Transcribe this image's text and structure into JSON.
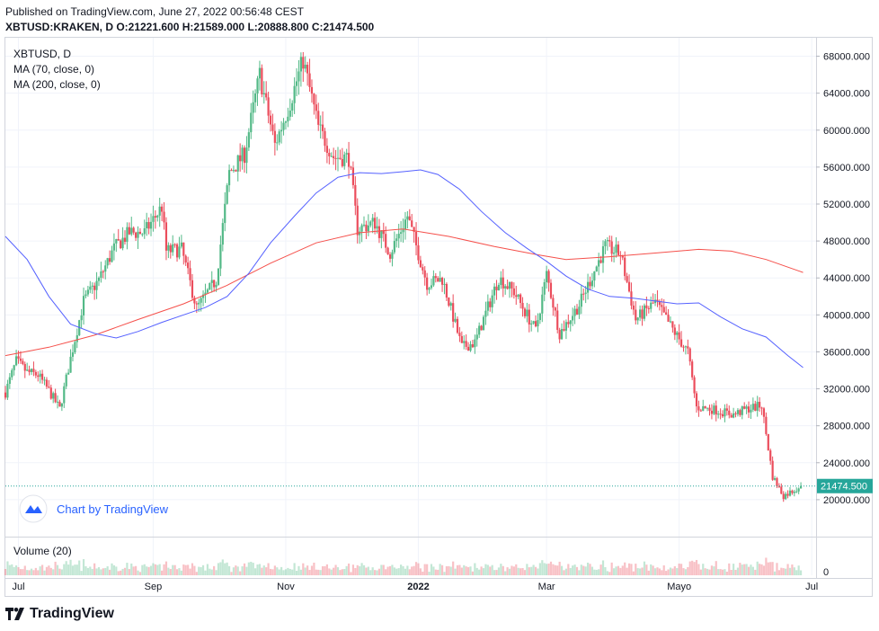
{
  "header": {
    "published": "Published on TradingView.com, June 27, 2022 00:56:48 CEST",
    "ohlc_line": "XBTUSD:KRAKEN, D O:21221.600 H:21589.000 L:20888.800 C:21474.500"
  },
  "footer_brand": "TradingView",
  "watermark": "Chart by TradingView",
  "colors": {
    "up": "#26a69a",
    "up_soft": "#53b987",
    "down": "#ef5350",
    "down_soft": "#eb4d5c",
    "ma70": "#5561ff",
    "ma200": "#f5504b",
    "grid": "#f0f3fa",
    "last_price": "#26a69a",
    "watermark": "#2962ff"
  },
  "chart_data": {
    "type": "candlestick",
    "symbol": "XBTUSD, D",
    "legend": [
      "MA (70, close, 0)",
      "MA (200, close, 0)"
    ],
    "volume_label": "Volume (20)",
    "y_ticks": [
      "68000.000",
      "64000.000",
      "60000.000",
      "56000.000",
      "52000.000",
      "48000.000",
      "44000.000",
      "40000.000",
      "36000.000",
      "32000.000",
      "28000.000",
      "24000.000",
      "20000.000"
    ],
    "y_tick_values": [
      68000,
      64000,
      60000,
      56000,
      52000,
      48000,
      44000,
      40000,
      36000,
      32000,
      28000,
      24000,
      20000
    ],
    "ylim": [
      16000,
      70000
    ],
    "x_ticks": [
      {
        "label": "Jul",
        "date": "2021-07-01"
      },
      {
        "label": "Sep",
        "date": "2021-09-01"
      },
      {
        "label": "Nov",
        "date": "2021-11-01"
      },
      {
        "label": "2022",
        "date": "2022-01-01"
      },
      {
        "label": "Mar",
        "date": "2022-03-01"
      },
      {
        "label": "Mayo",
        "date": "2022-05-01"
      },
      {
        "label": "Jul",
        "date": "2022-07-01"
      }
    ],
    "xlim": [
      "2021-06-25",
      "2022-07-03"
    ],
    "volume_zero_label": "0",
    "last_price": 21474.5,
    "last_price_label": "21474.500",
    "close_points": [
      [
        "2021-06-25",
        31600
      ],
      [
        "2021-06-30",
        35000
      ],
      [
        "2021-07-05",
        33800
      ],
      [
        "2021-07-10",
        33500
      ],
      [
        "2021-07-15",
        31800
      ],
      [
        "2021-07-20",
        29800
      ],
      [
        "2021-07-25",
        35300
      ],
      [
        "2021-07-31",
        41500
      ],
      [
        "2021-08-07",
        43800
      ],
      [
        "2021-08-14",
        47200
      ],
      [
        "2021-08-21",
        48900
      ],
      [
        "2021-08-28",
        48900
      ],
      [
        "2021-09-05",
        51700
      ],
      [
        "2021-09-07",
        46900
      ],
      [
        "2021-09-14",
        47100
      ],
      [
        "2021-09-21",
        40700
      ],
      [
        "2021-09-30",
        43800
      ],
      [
        "2021-10-06",
        55400
      ],
      [
        "2021-10-13",
        57400
      ],
      [
        "2021-10-20",
        66000
      ],
      [
        "2021-10-27",
        58400
      ],
      [
        "2021-11-03",
        63000
      ],
      [
        "2021-11-09",
        67600
      ],
      [
        "2021-11-16",
        60300
      ],
      [
        "2021-11-23",
        57100
      ],
      [
        "2021-11-30",
        57000
      ],
      [
        "2021-12-04",
        49300
      ],
      [
        "2021-12-12",
        50000
      ],
      [
        "2021-12-19",
        46700
      ],
      [
        "2021-12-27",
        50700
      ],
      [
        "2022-01-05",
        43400
      ],
      [
        "2022-01-12",
        43900
      ],
      [
        "2022-01-21",
        36500
      ],
      [
        "2022-01-27",
        37000
      ],
      [
        "2022-02-07",
        44000
      ],
      [
        "2022-02-14",
        42500
      ],
      [
        "2022-02-24",
        38300
      ],
      [
        "2022-03-01",
        44400
      ],
      [
        "2022-03-07",
        38000
      ],
      [
        "2022-03-16",
        41100
      ],
      [
        "2022-03-28",
        47400
      ],
      [
        "2022-04-04",
        46600
      ],
      [
        "2022-04-11",
        39500
      ],
      [
        "2022-04-20",
        41400
      ],
      [
        "2022-04-30",
        37700
      ],
      [
        "2022-05-05",
        36000
      ],
      [
        "2022-05-09",
        30000
      ],
      [
        "2022-05-16",
        29800
      ],
      [
        "2022-05-26",
        29200
      ],
      [
        "2022-06-01",
        29800
      ],
      [
        "2022-06-08",
        30200
      ],
      [
        "2022-06-13",
        22500
      ],
      [
        "2022-06-18",
        20400
      ],
      [
        "2022-06-26",
        21474.5
      ]
    ],
    "ma70_points": [
      [
        "2021-06-25",
        48500
      ],
      [
        "2021-07-05",
        46000
      ],
      [
        "2021-07-15",
        42000
      ],
      [
        "2021-07-25",
        39000
      ],
      [
        "2021-08-05",
        38000
      ],
      [
        "2021-08-15",
        37500
      ],
      [
        "2021-08-25",
        38200
      ],
      [
        "2021-09-05",
        39200
      ],
      [
        "2021-09-15",
        40000
      ],
      [
        "2021-09-25",
        40800
      ],
      [
        "2021-10-05",
        42000
      ],
      [
        "2021-10-15",
        44500
      ],
      [
        "2021-10-25",
        47800
      ],
      [
        "2021-11-05",
        50700
      ],
      [
        "2021-11-15",
        53200
      ],
      [
        "2021-11-25",
        54900
      ],
      [
        "2021-12-05",
        55400
      ],
      [
        "2021-12-15",
        55300
      ],
      [
        "2021-12-25",
        55500
      ],
      [
        "2022-01-02",
        55700
      ],
      [
        "2022-01-10",
        55200
      ],
      [
        "2022-01-20",
        53600
      ],
      [
        "2022-01-30",
        51200
      ],
      [
        "2022-02-10",
        48900
      ],
      [
        "2022-02-20",
        47200
      ],
      [
        "2022-03-01",
        45800
      ],
      [
        "2022-03-10",
        44200
      ],
      [
        "2022-03-20",
        42800
      ],
      [
        "2022-03-30",
        42000
      ],
      [
        "2022-04-10",
        41800
      ],
      [
        "2022-04-20",
        41500
      ],
      [
        "2022-04-30",
        41200
      ],
      [
        "2022-05-10",
        41300
      ],
      [
        "2022-05-20",
        39800
      ],
      [
        "2022-05-30",
        38500
      ],
      [
        "2022-06-10",
        37600
      ],
      [
        "2022-06-20",
        35600
      ],
      [
        "2022-06-27",
        34300
      ]
    ],
    "ma200_points": [
      [
        "2021-06-25",
        35600
      ],
      [
        "2021-07-15",
        36500
      ],
      [
        "2021-08-05",
        37800
      ],
      [
        "2021-08-25",
        39500
      ],
      [
        "2021-09-15",
        41200
      ],
      [
        "2021-10-05",
        43200
      ],
      [
        "2021-10-25",
        45600
      ],
      [
        "2021-11-15",
        47800
      ],
      [
        "2021-12-05",
        48900
      ],
      [
        "2021-12-25",
        49300
      ],
      [
        "2022-01-15",
        48500
      ],
      [
        "2022-02-05",
        47400
      ],
      [
        "2022-02-25",
        46500
      ],
      [
        "2022-03-10",
        46000
      ],
      [
        "2022-03-30",
        46300
      ],
      [
        "2022-04-20",
        46700
      ],
      [
        "2022-05-10",
        47100
      ],
      [
        "2022-05-25",
        46900
      ],
      [
        "2022-06-10",
        46000
      ],
      [
        "2022-06-27",
        44600
      ]
    ]
  }
}
